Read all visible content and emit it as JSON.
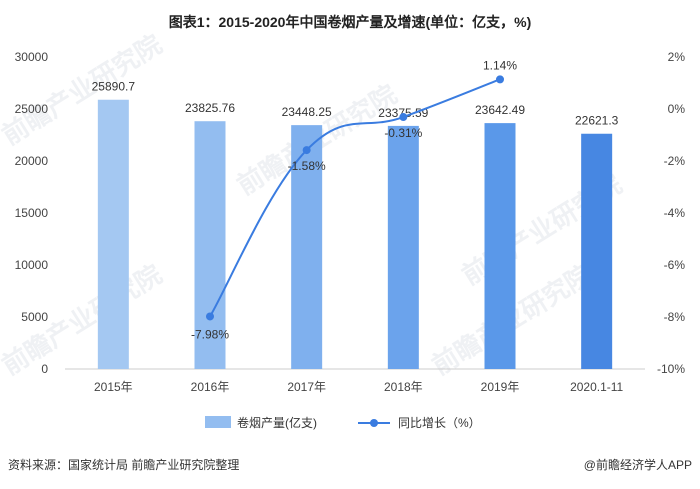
{
  "title": "图表1：2015-2020年中国卷烟产量及增速(单位：亿支，%)",
  "watermark": "前瞻产业研究院",
  "footer": {
    "source": "资料来源：国家统计局 前瞻产业研究院整理",
    "brand": "@前瞻经济学人APP"
  },
  "colors": {
    "bars": [
      "#a4c8f2",
      "#93bdf0",
      "#7fb0ee",
      "#6ba3ec",
      "#5a98e9",
      "#4787e2"
    ],
    "line": "#3a7ce0",
    "axis_text": "#444444",
    "grid": "#e6e6e6"
  },
  "chart_data": {
    "type": "bar",
    "categories": [
      "2015年",
      "2016年",
      "2017年",
      "2018年",
      "2019年",
      "2020.1-11"
    ],
    "series": [
      {
        "name": "卷烟产量(亿支)",
        "type": "bar",
        "axis": "left",
        "values": [
          25890.7,
          23825.76,
          23448.25,
          23375.59,
          23642.49,
          22621.3
        ],
        "labels": [
          "25890.7",
          "23825.76",
          "23448.25",
          "23375.59",
          "23642.49",
          "22621.3"
        ]
      },
      {
        "name": "同比增长（%）",
        "type": "line",
        "axis": "right",
        "values": [
          null,
          -7.98,
          -1.58,
          -0.31,
          1.14,
          null
        ],
        "labels": [
          "",
          "-7.98%",
          "-1.58%",
          "-0.31%",
          "1.14%",
          ""
        ]
      }
    ],
    "y_left": {
      "min": 0,
      "max": 30000,
      "ticks": [
        "0",
        "5000",
        "10000",
        "15000",
        "20000",
        "25000",
        "30000"
      ]
    },
    "y_right": {
      "min": -10,
      "max": 2,
      "ticks": [
        "-10%",
        "-8%",
        "-6%",
        "-4%",
        "-2%",
        "0%",
        "2%"
      ]
    },
    "legend": "bottom",
    "grid": false
  }
}
